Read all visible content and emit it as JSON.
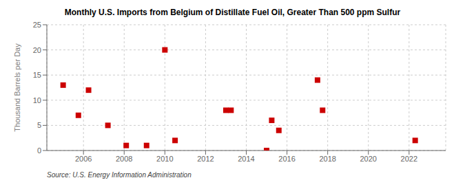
{
  "chart_data": {
    "type": "scatter",
    "title": "Monthly U.S. Imports from Belgium of Distillate Fuel Oil, Greater Than 500 ppm Sulfur",
    "ylabel": "Thousand Barrels per Day",
    "annotations": [
      "Source: U.S. Energy Information Administration"
    ],
    "x": [
      2005.0,
      2005.75,
      2006.25,
      2007.2,
      2008.1,
      2009.1,
      2010.0,
      2010.5,
      2013.0,
      2013.25,
      2015.0,
      2015.25,
      2015.6,
      2017.5,
      2017.75,
      2022.3
    ],
    "values": [
      13,
      7,
      12,
      5,
      1,
      1,
      20,
      2,
      8,
      8,
      0,
      6,
      4,
      14,
      8,
      2
    ],
    "color": "#cc0000",
    "marker": "square",
    "xlim": [
      2004.2,
      2023.8
    ],
    "ylim": [
      0,
      25
    ],
    "xticks": [
      2006,
      2008,
      2010,
      2012,
      2014,
      2016,
      2018,
      2020,
      2022
    ],
    "yticks": [
      0,
      5,
      10,
      15,
      20,
      25
    ],
    "grid": true
  }
}
